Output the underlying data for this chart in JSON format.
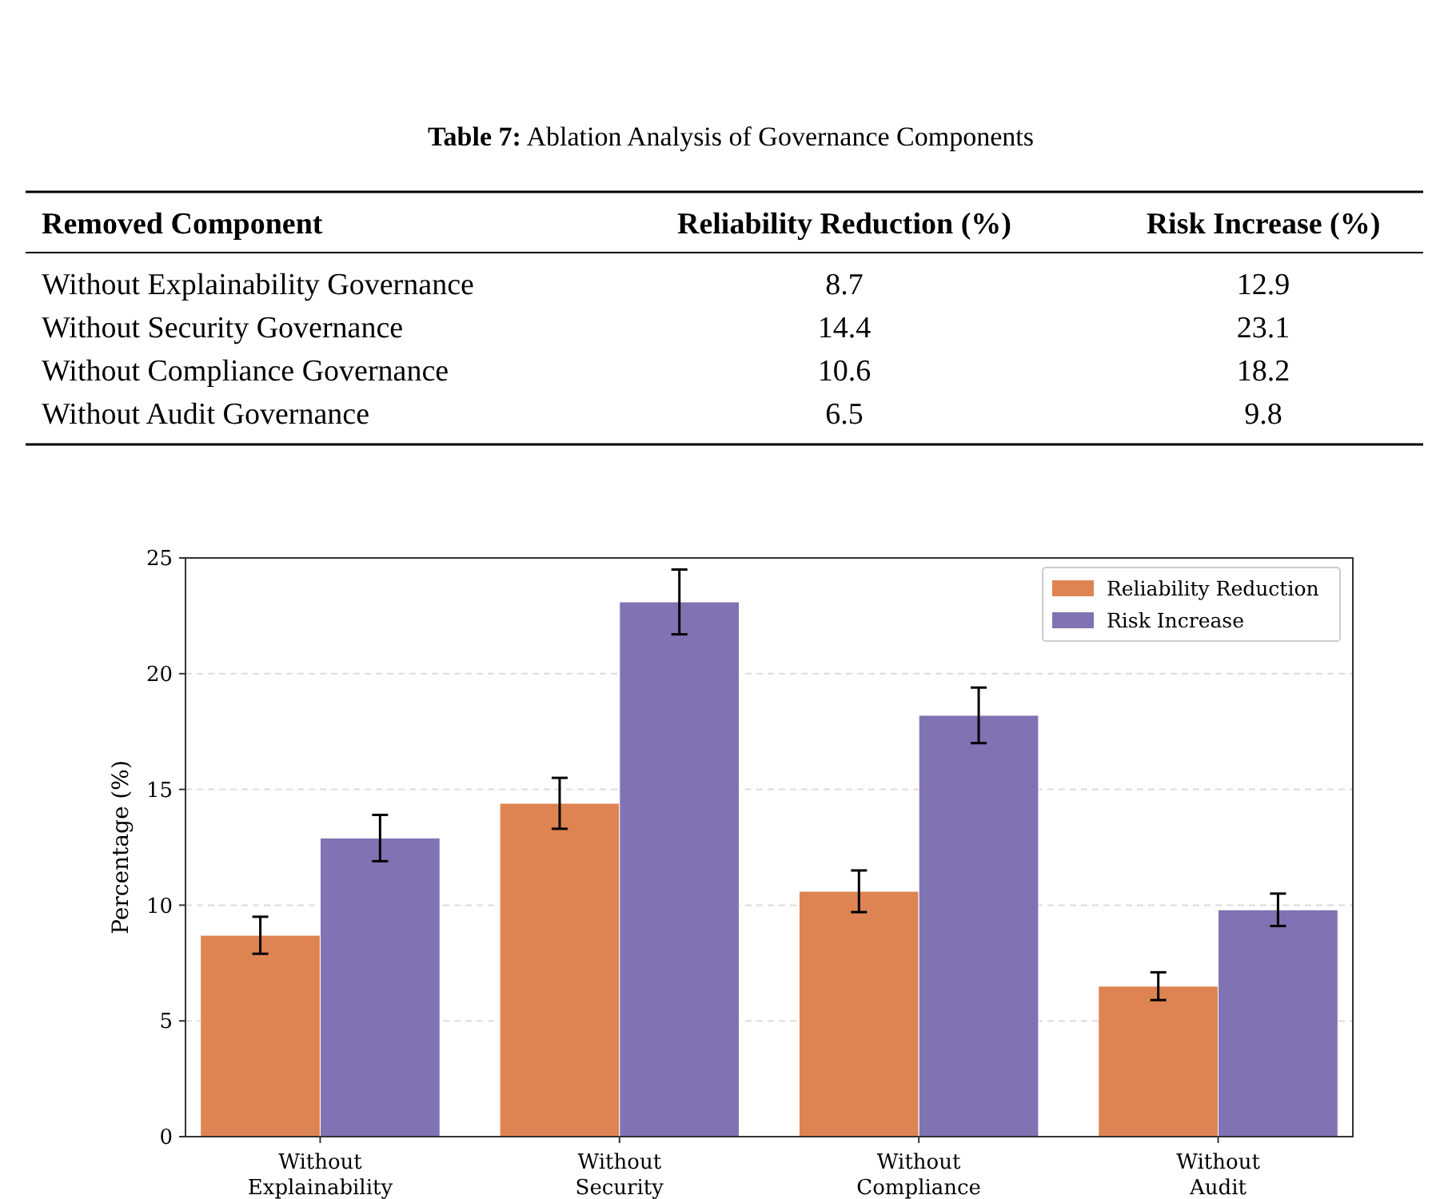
{
  "chart_data": [
    {
      "type": "other",
      "title": "Table 7: Ablation Analysis of Governance Components",
      "xlabel": "Removed Component",
      "categories": [
        "Without Explainability Governance",
        "Without Security Governance",
        "Without Compliance Governance",
        "Without Audit Governance"
      ],
      "series": [
        {
          "name": "Reliability Reduction (%)",
          "values": [
            8.7,
            14.4,
            10.6,
            6.5
          ]
        },
        {
          "name": "Risk Increase (%)",
          "values": [
            12.9,
            23.1,
            18.2,
            9.8
          ]
        }
      ],
      "data_labels": true
    },
    {
      "type": "bar",
      "ylabel": "Percentage (%)",
      "categories": [
        "Without\nExplainability",
        "Without\nSecurity",
        "Without\nCompliance",
        "Without\nAudit"
      ],
      "series": [
        {
          "name": "Reliability Reduction",
          "color": "#dd8452",
          "values": [
            8.7,
            14.4,
            10.6,
            6.5
          ],
          "errors": [
            0.8,
            1.1,
            0.9,
            0.6
          ]
        },
        {
          "name": "Risk Increase",
          "color": "#8172b3",
          "values": [
            12.9,
            23.1,
            18.2,
            9.8
          ],
          "errors": [
            1.0,
            1.4,
            1.2,
            0.7
          ]
        }
      ],
      "ylim": [
        0,
        25
      ],
      "yticks": [
        0,
        5,
        10,
        15,
        20,
        25
      ],
      "grid": "y",
      "legend": "top right"
    }
  ]
}
